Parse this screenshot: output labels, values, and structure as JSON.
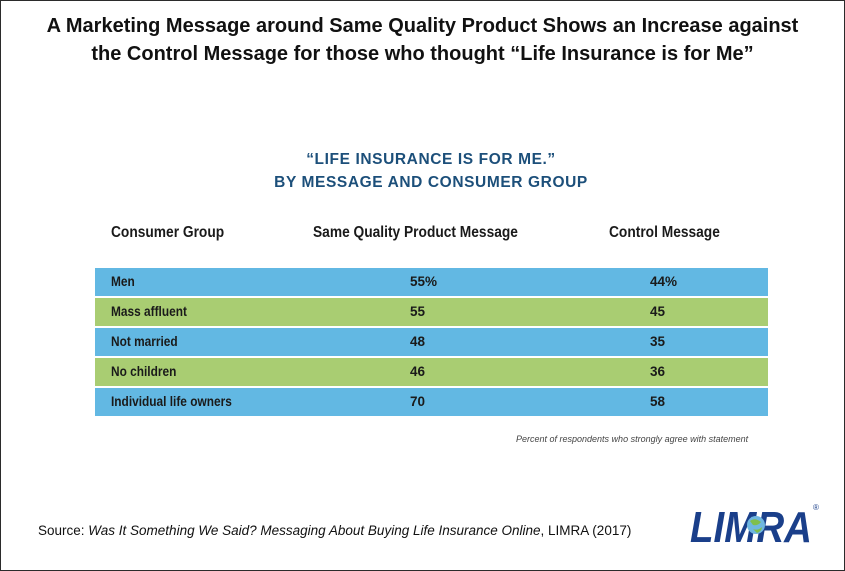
{
  "headline": {
    "line1": "A Marketing Message around Same Quality Product Shows an Increase against",
    "line2": "the Control Message for those who thought “Life Insurance is for Me”"
  },
  "chart_data": {
    "type": "table",
    "title_line1": "“LIFE INSURANCE IS FOR ME.”",
    "title_line2": "BY MESSAGE AND CONSUMER GROUP",
    "columns": [
      "Consumer Group",
      "Same Quality Product Message",
      "Control Message"
    ],
    "rows": [
      {
        "group": "Men",
        "same_quality": "55%",
        "control": "44%"
      },
      {
        "group": "Mass affluent",
        "same_quality": "55",
        "control": "45"
      },
      {
        "group": "Not married",
        "same_quality": "48",
        "control": "35"
      },
      {
        "group": "No children",
        "same_quality": "46",
        "control": "36"
      },
      {
        "group": "Individual life owners",
        "same_quality": "70",
        "control": "58"
      }
    ],
    "note": "Percent of respondents who strongly agree with statement",
    "colors": {
      "row_odd": "#62b8e3",
      "row_even": "#a9cd72",
      "title": "#1c4f7a"
    }
  },
  "source": {
    "prefix": "Source: ",
    "title": "Was It Something We Said? Messaging About Buying Life Insurance Online",
    "suffix": ", LIMRA (2017)"
  },
  "logo": {
    "text": "LIMRA",
    "mark": "®",
    "color": "#1a3f8a"
  }
}
